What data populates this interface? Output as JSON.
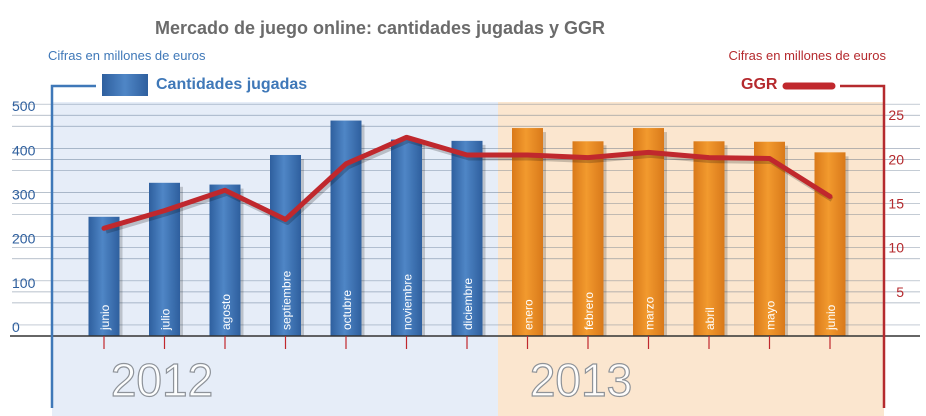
{
  "title": "Mercado de juego online: cantidades jugadas y GGR",
  "units": {
    "left": "Cifras en millones de euros",
    "right": "Cifras en millones de euros"
  },
  "colors": {
    "bar_2012": "#4f86c6",
    "bar_2013": "#f29a2e",
    "line": "#c0282d",
    "bg_2012": "#e6edf8",
    "bg_2013": "#fbe6cf",
    "frame_left": "#3f78b8",
    "frame_right": "#b52a2e"
  },
  "chart_data": {
    "type": "bar",
    "categories": [
      "junio",
      "julio",
      "agosto",
      "septiembre",
      "octubre",
      "noviembre",
      "diciembre",
      "enero",
      "febrero",
      "marzo",
      "abril",
      "mayo",
      "junio"
    ],
    "year_groups": [
      {
        "label": "2012",
        "count": 7
      },
      {
        "label": "2013",
        "count": 6
      }
    ],
    "series": [
      {
        "name": "Cantidades jugadas",
        "type": "bar",
        "axis": "left",
        "values": [
          270,
          347,
          343,
          410,
          488,
          445,
          442,
          471,
          441,
          471,
          441,
          440,
          416
        ]
      },
      {
        "name": "GGR",
        "type": "line",
        "axis": "right",
        "values": [
          12.2,
          14.2,
          16.5,
          13.2,
          19.5,
          22.5,
          20.5,
          20.5,
          20.2,
          20.8,
          20.2,
          20.1,
          15.8
        ]
      }
    ],
    "y_left": {
      "ticks": [
        0,
        100,
        200,
        300,
        400,
        500
      ],
      "range": [
        0,
        530
      ]
    },
    "y_right": {
      "ticks": [
        5,
        10,
        15,
        20,
        25
      ],
      "range": [
        0,
        26.5
      ]
    },
    "legend": [
      "Cantidades jugadas",
      "GGR"
    ],
    "grid": true
  }
}
